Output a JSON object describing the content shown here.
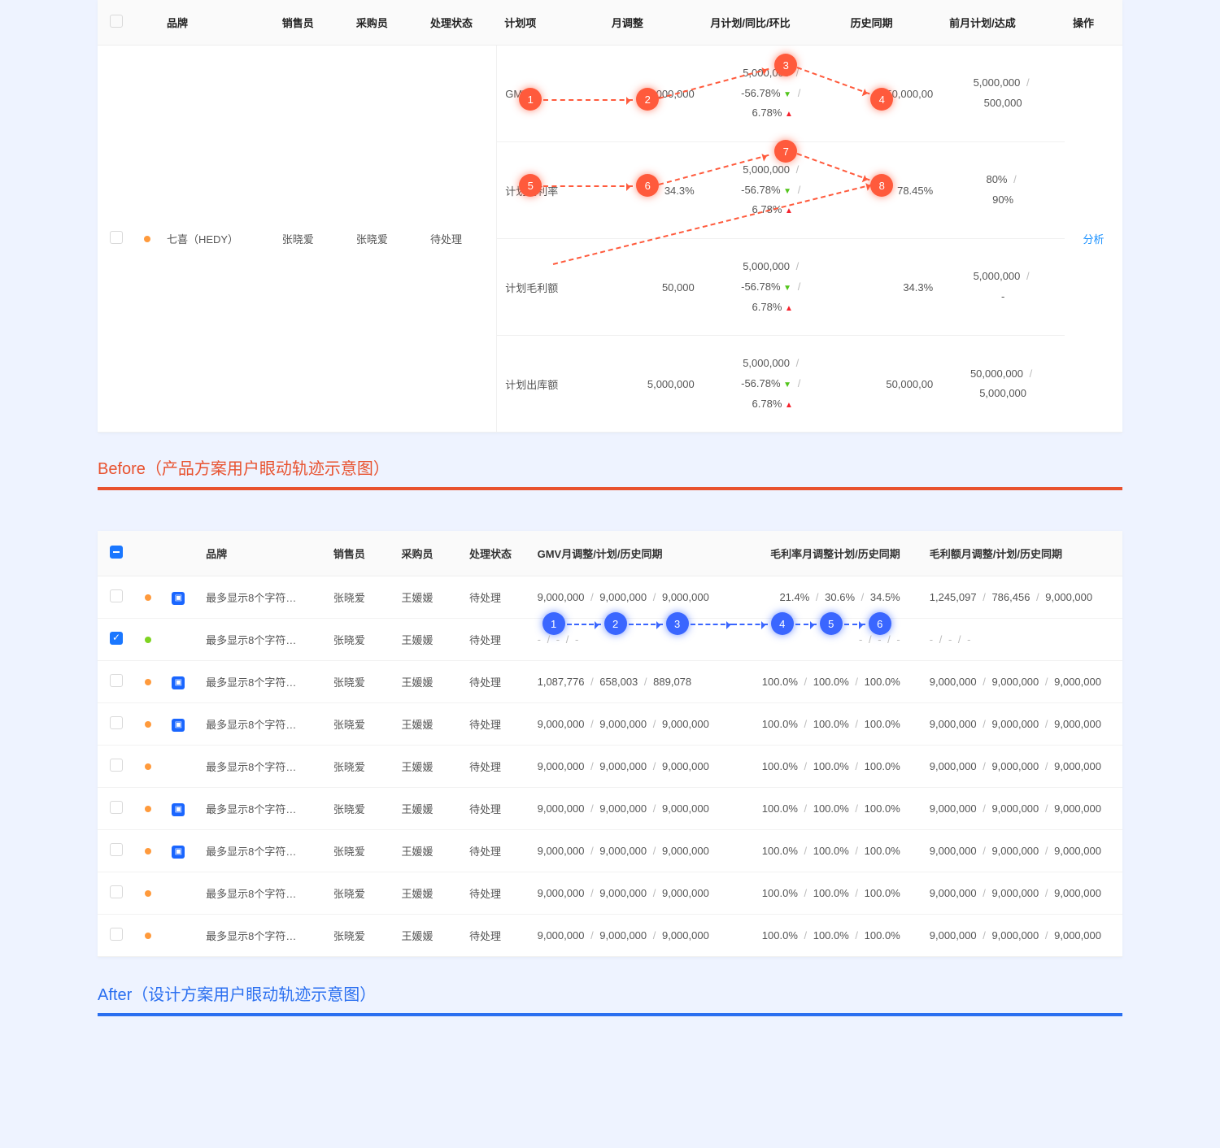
{
  "colors": {
    "accent_before": "#e8522f",
    "accent_after": "#2a6ff0",
    "page_bg": "#eef3ff",
    "panel_bg": "#ffffff",
    "header_bg": "#fafafa",
    "border": "#f0f0f0",
    "dot_orange": "#ff9a3c",
    "dot_green": "#7ed321",
    "link": "#1890ff",
    "trend_down": "#52c41a",
    "trend_up": "#f5222d",
    "badge_blue": "#1a66ff",
    "eye_red": "#ff5a3c",
    "eye_blue": "#3a66ff"
  },
  "labels": {
    "before": "Before",
    "before_sub": "（产品方案用户眼动轨迹示意图）",
    "after": "After",
    "after_sub": "（设计方案用户眼动轨迹示意图）"
  },
  "before": {
    "headers": {
      "brand": "品牌",
      "salesperson": "销售员",
      "buyer": "采购员",
      "status": "处理状态",
      "plan_item": "计划项",
      "month_adj": "月调整",
      "month_plan_cmp": "月计划/同比/环比",
      "history": "历史同期",
      "prev_month": "前月计划/达成",
      "op": "操作"
    },
    "row": {
      "brand": "七喜（HEDY）",
      "salesperson": "张晓爱",
      "buyer": "张晓爱",
      "status": "待处理",
      "op": "分析"
    },
    "plan_rows": [
      {
        "name": "GMV",
        "adj": "5,000,000",
        "plan": "5,000,000",
        "yoy": "-56.78%",
        "yoy_dir": "down",
        "mom": "6.78%",
        "mom_dir": "up",
        "history": "50,000,00",
        "prev_plan": "5,000,000",
        "prev_done": "500,000"
      },
      {
        "name": "计划毛利率",
        "adj": "34.3%",
        "plan": "5,000,000",
        "yoy": "-56.78%",
        "yoy_dir": "down",
        "mom": "6.78%",
        "mom_dir": "up",
        "history": "78.45%",
        "prev_plan": "80%",
        "prev_done": "90%"
      },
      {
        "name": "计划毛利额",
        "adj": "50,000",
        "plan": "5,000,000",
        "yoy": "-56.78%",
        "yoy_dir": "down",
        "mom": "6.78%",
        "mom_dir": "up",
        "history": "34.3%",
        "prev_plan": "5,000,000",
        "prev_done": "-"
      },
      {
        "name": "计划出库额",
        "adj": "5,000,000",
        "plan": "5,000,000",
        "yoy": "-56.78%",
        "yoy_dir": "down",
        "mom": "6.78%",
        "mom_dir": "up",
        "history": "50,000,00",
        "prev_plan": "50,000,000",
        "prev_done": "5,000,000"
      }
    ],
    "eye_badges": [
      "1",
      "2",
      "3",
      "4",
      "5",
      "6",
      "7",
      "8"
    ]
  },
  "after": {
    "headers": {
      "brand": "品牌",
      "salesperson": "销售员",
      "buyer": "采购员",
      "status": "处理状态",
      "gmv": "GMV月调整/计划/历史同期",
      "margin": "毛利率月调整计划/历史同期",
      "profit": "毛利额月调整/计划/历史同期"
    },
    "rows": [
      {
        "checked": false,
        "dot": "orange",
        "badge": true,
        "brand": "最多显示8个字符…",
        "sales": "张晓爱",
        "buyer": "王媛媛",
        "status": "待处理",
        "gmv": [
          "9,000,000",
          "9,000,000",
          "9,000,000"
        ],
        "margin": [
          "21.4%",
          "30.6%",
          "34.5%"
        ],
        "profit": [
          "1,245,097",
          "786,456",
          "9,000,000"
        ]
      },
      {
        "checked": true,
        "dot": "green",
        "badge": false,
        "brand": "最多显示8个字符…",
        "sales": "张晓爱",
        "buyer": "王媛媛",
        "status": "待处理",
        "gmv": [
          "-",
          "-",
          "-"
        ],
        "margin": [
          "-",
          "-",
          "-"
        ],
        "profit": [
          "-",
          "-",
          "-"
        ]
      },
      {
        "checked": false,
        "dot": "orange",
        "badge": true,
        "brand": "最多显示8个字符…",
        "sales": "张晓爱",
        "buyer": "王媛媛",
        "status": "待处理",
        "gmv": [
          "1,087,776",
          "658,003",
          "889,078"
        ],
        "margin": [
          "100.0%",
          "100.0%",
          "100.0%"
        ],
        "profit": [
          "9,000,000",
          "9,000,000",
          "9,000,000"
        ]
      },
      {
        "checked": false,
        "dot": "orange",
        "badge": true,
        "brand": "最多显示8个字符…",
        "sales": "张晓爱",
        "buyer": "王媛媛",
        "status": "待处理",
        "gmv": [
          "9,000,000",
          "9,000,000",
          "9,000,000"
        ],
        "margin": [
          "100.0%",
          "100.0%",
          "100.0%"
        ],
        "profit": [
          "9,000,000",
          "9,000,000",
          "9,000,000"
        ]
      },
      {
        "checked": false,
        "dot": "orange",
        "badge": false,
        "brand": "最多显示8个字符…",
        "sales": "张晓爱",
        "buyer": "王媛媛",
        "status": "待处理",
        "gmv": [
          "9,000,000",
          "9,000,000",
          "9,000,000"
        ],
        "margin": [
          "100.0%",
          "100.0%",
          "100.0%"
        ],
        "profit": [
          "9,000,000",
          "9,000,000",
          "9,000,000"
        ]
      },
      {
        "checked": false,
        "dot": "orange",
        "badge": true,
        "brand": "最多显示8个字符…",
        "sales": "张晓爱",
        "buyer": "王媛媛",
        "status": "待处理",
        "gmv": [
          "9,000,000",
          "9,000,000",
          "9,000,000"
        ],
        "margin": [
          "100.0%",
          "100.0%",
          "100.0%"
        ],
        "profit": [
          "9,000,000",
          "9,000,000",
          "9,000,000"
        ]
      },
      {
        "checked": false,
        "dot": "orange",
        "badge": true,
        "brand": "最多显示8个字符…",
        "sales": "张晓爱",
        "buyer": "王媛媛",
        "status": "待处理",
        "gmv": [
          "9,000,000",
          "9,000,000",
          "9,000,000"
        ],
        "margin": [
          "100.0%",
          "100.0%",
          "100.0%"
        ],
        "profit": [
          "9,000,000",
          "9,000,000",
          "9,000,000"
        ]
      },
      {
        "checked": false,
        "dot": "orange",
        "badge": false,
        "brand": "最多显示8个字符…",
        "sales": "张晓爱",
        "buyer": "王媛媛",
        "status": "待处理",
        "gmv": [
          "9,000,000",
          "9,000,000",
          "9,000,000"
        ],
        "margin": [
          "100.0%",
          "100.0%",
          "100.0%"
        ],
        "profit": [
          "9,000,000",
          "9,000,000",
          "9,000,000"
        ]
      },
      {
        "checked": false,
        "dot": "orange",
        "badge": false,
        "brand": "最多显示8个字符…",
        "sales": "张晓爱",
        "buyer": "王媛媛",
        "status": "待处理",
        "gmv": [
          "9,000,000",
          "9,000,000",
          "9,000,000"
        ],
        "margin": [
          "100.0%",
          "100.0%",
          "100.0%"
        ],
        "profit": [
          "9,000,000",
          "9,000,000",
          "9,000,000"
        ]
      }
    ],
    "eye_badges": [
      "1",
      "2",
      "3",
      "4",
      "5",
      "6"
    ]
  }
}
